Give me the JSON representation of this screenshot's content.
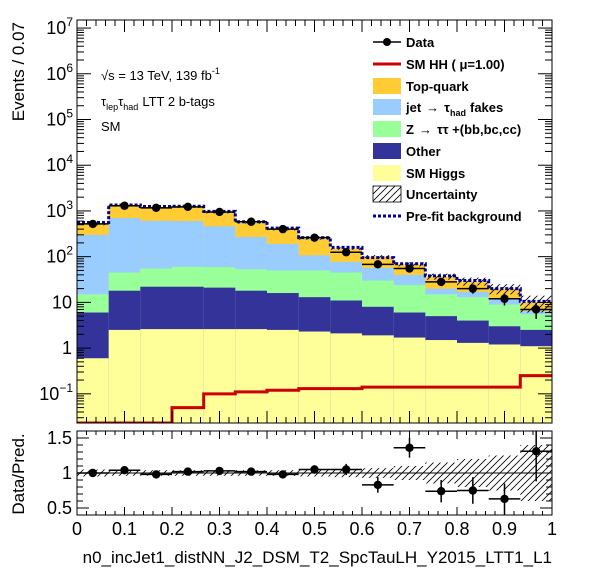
{
  "chart_data": [
    {
      "type": "bar",
      "panel": "main",
      "ylabel": "Events / 0.07",
      "xlabel": "",
      "log_y": true,
      "ylim": [
        0.023,
        15000000
      ],
      "xlim": [
        0,
        1
      ],
      "bins": [
        [
          0.0,
          0.0667
        ],
        [
          0.0667,
          0.1333
        ],
        [
          0.1333,
          0.2
        ],
        [
          0.2,
          0.2667
        ],
        [
          0.2667,
          0.3333
        ],
        [
          0.3333,
          0.4
        ],
        [
          0.4,
          0.4667
        ],
        [
          0.4667,
          0.5333
        ],
        [
          0.5333,
          0.6
        ],
        [
          0.6,
          0.6667
        ],
        [
          0.6667,
          0.7333
        ],
        [
          0.7333,
          0.8
        ],
        [
          0.8,
          0.8667
        ],
        [
          0.8667,
          0.9333
        ],
        [
          0.9333,
          1.0
        ]
      ],
      "stack_order": [
        "SM Higgs",
        "Other",
        "Z → ττ +(bb,bc,cc)",
        "jet → τhad fakes",
        "Top-quark"
      ],
      "series": [
        {
          "name": "SM Higgs",
          "color": "#ffff99",
          "values": [
            0.6,
            2.5,
            2.6,
            2.6,
            2.6,
            2.6,
            2.5,
            2.3,
            2.1,
            1.9,
            1.7,
            1.5,
            1.3,
            1.2,
            1.1
          ]
        },
        {
          "name": "Other",
          "color": "#333399",
          "values": [
            5.4,
            15.5,
            19.4,
            19.4,
            18.4,
            15.4,
            13.5,
            10.7,
            8.9,
            6.1,
            4.3,
            3.5,
            2.7,
            1.8,
            1.4
          ]
        },
        {
          "name": "Z → ττ +(bb,bc,cc)",
          "color": "#99ff99",
          "values": [
            9,
            27,
            33,
            38,
            38,
            35,
            34,
            37,
            34,
            22,
            18,
            10,
            9,
            6,
            3
          ]
        },
        {
          "name": "jet → τhad fakes",
          "color": "#99ccff",
          "values": [
            285,
            655,
            555,
            540,
            402,
            217,
            140,
            57,
            32,
            27,
            16,
            5,
            4,
            3,
            1
          ]
        },
        {
          "name": "Top-quark",
          "color": "#ffcc33",
          "values": [
            210,
            590,
            610,
            620,
            460,
            280,
            200,
            140,
            73,
            44,
            28,
            17,
            12,
            8,
            3.5
          ]
        },
        {
          "name": "SM HH ( μ=1.00)",
          "color": "#cc0000",
          "style": "line",
          "values": [
            0.023,
            0.023,
            0.023,
            0.05,
            0.1,
            0.11,
            0.12,
            0.13,
            0.13,
            0.14,
            0.14,
            0.14,
            0.14,
            0.14,
            0.25
          ]
        },
        {
          "name": "Pre-fit background",
          "color": "#000099",
          "style": "dotted",
          "values": [
            560,
            1350,
            1250,
            1270,
            975,
            580,
            420,
            260,
            160,
            95,
            70,
            38,
            30,
            20,
            10.5
          ]
        },
        {
          "name": "Data",
          "color": "#000000",
          "style": "points",
          "values": [
            520,
            1300,
            1170,
            1230,
            950,
            580,
            400,
            260,
            125,
            68,
            55,
            28,
            20,
            12,
            7
          ]
        }
      ],
      "uncertainty": {
        "name": "Uncertainty",
        "rel": [
          0.05,
          0.04,
          0.04,
          0.04,
          0.04,
          0.04,
          0.04,
          0.05,
          0.06,
          0.07,
          0.1,
          0.15,
          0.2,
          0.25,
          0.4
        ]
      },
      "legend_position": "top-right",
      "annotations": [
        "√s = 13 TeV, 139 fb",
        "-1",
        "τ",
        "lep",
        "τ",
        "had",
        "LTT 2 b-tags",
        "SM"
      ],
      "y_ticks": [
        {
          "value": 0.1,
          "base": "10",
          "exp": "−1"
        },
        {
          "value": 1,
          "label": "1"
        },
        {
          "value": 10,
          "label": "10"
        },
        {
          "value": 100,
          "base": "10",
          "exp": "2"
        },
        {
          "value": 1000,
          "base": "10",
          "exp": "3"
        },
        {
          "value": 10000,
          "base": "10",
          "exp": "4"
        },
        {
          "value": 100000,
          "base": "10",
          "exp": "5"
        },
        {
          "value": 1000000,
          "base": "10",
          "exp": "6"
        },
        {
          "value": 10000000,
          "base": "10",
          "exp": "7"
        }
      ]
    },
    {
      "type": "scatter",
      "panel": "ratio",
      "ylabel": "Data/Pred.",
      "xlabel": "n0_incJet1_distNN_J2_DSM_T2_SpcTauLH_Y2015_LTT1_L1",
      "ylim": [
        0.4,
        1.6
      ],
      "xlim": [
        0,
        1
      ],
      "y_ticks": [
        "0.5",
        "1",
        "1.5"
      ],
      "x_ticks": [
        "0",
        "0.1",
        "0.2",
        "0.3",
        "0.4",
        "0.5",
        "0.6",
        "0.7",
        "0.8",
        "0.9",
        "1"
      ],
      "x": [
        0.0333,
        0.1,
        0.1667,
        0.2333,
        0.3,
        0.3667,
        0.4333,
        0.5,
        0.5667,
        0.6333,
        0.7,
        0.7667,
        0.8333,
        0.9,
        0.9667
      ],
      "values": [
        1.0,
        1.04,
        0.98,
        1.02,
        1.03,
        1.02,
        0.98,
        1.05,
        1.05,
        0.83,
        1.36,
        0.74,
        0.75,
        0.63,
        1.31
      ],
      "errors": [
        0.04,
        0.03,
        0.03,
        0.03,
        0.03,
        0.04,
        0.05,
        0.06,
        0.08,
        0.11,
        0.14,
        0.16,
        0.19,
        0.22,
        0.43
      ]
    }
  ],
  "legend": {
    "data": "Data",
    "smhh": "SM HH ( μ=1.00)",
    "top": "Top-quark",
    "fakes_a": "jet",
    "fakes_b": "τ",
    "fakes_sub": "had",
    "fakes_c": "fakes",
    "ztt_a": "Z",
    "ztt_b": "ττ +(bb,bc,cc)",
    "other": "Other",
    "higgs": "SM Higgs",
    "unc": "Uncertainty",
    "prefit": "Pre-fit background",
    "arrow": "→"
  },
  "labels": {
    "sqrt_s": "√s = 13 TeV, 139 fb",
    "lumi_exp": "-1",
    "tau1": "τ",
    "tau1_sub": "lep",
    "tau2": "τ",
    "tau2_sub": "had",
    "region": "LTT 2 b-tags",
    "signal": "SM",
    "main_ylabel": "Events / 0.07",
    "ratio_ylabel": "Data/Pred.",
    "xlabel": "n0_incJet1_distNN_J2_DSM_T2_SpcTauLH_Y2015_LTT1_L1"
  },
  "colors": {
    "top": "#ffcc33",
    "fakes": "#99ccff",
    "ztt": "#99ff99",
    "other": "#333399",
    "higgs": "#ffff99",
    "smhh": "#cc0000",
    "prefit": "#000099"
  }
}
